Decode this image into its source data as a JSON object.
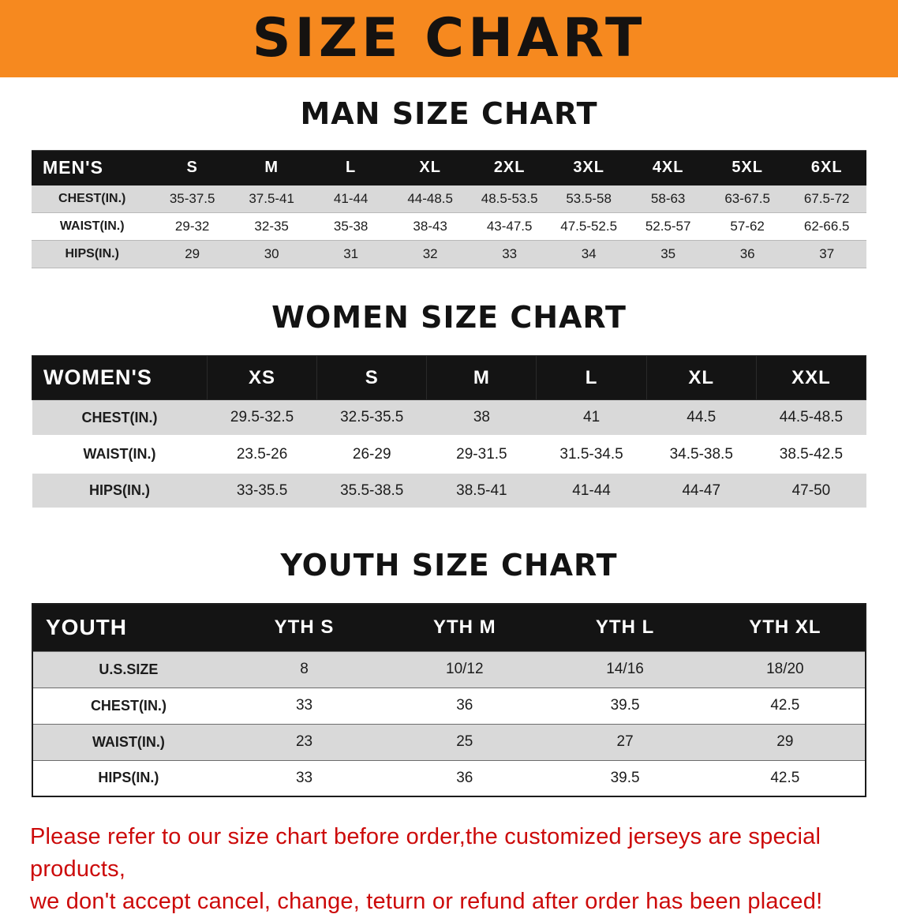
{
  "banner": {
    "title": "SIZE CHART"
  },
  "sections": {
    "men": {
      "heading": "MAN SIZE CHART"
    },
    "women": {
      "heading": "WOMEN SIZE CHART"
    },
    "youth": {
      "heading": "YOUTH SIZE CHART"
    }
  },
  "tables": {
    "men": {
      "header": [
        "MEN'S",
        "S",
        "M",
        "L",
        "XL",
        "2XL",
        "3XL",
        "4XL",
        "5XL",
        "6XL"
      ],
      "rows": [
        [
          "CHEST(IN.)",
          "35-37.5",
          "37.5-41",
          "41-44",
          "44-48.5",
          "48.5-53.5",
          "53.5-58",
          "58-63",
          "63-67.5",
          "67.5-72"
        ],
        [
          "WAIST(IN.)",
          "29-32",
          "32-35",
          "35-38",
          "38-43",
          "43-47.5",
          "47.5-52.5",
          "52.5-57",
          "57-62",
          "62-66.5"
        ],
        [
          "HIPS(IN.)",
          "29",
          "30",
          "31",
          "32",
          "33",
          "34",
          "35",
          "36",
          "37"
        ]
      ]
    },
    "women": {
      "header": [
        "WOMEN'S",
        "XS",
        "S",
        "M",
        "L",
        "XL",
        "XXL"
      ],
      "rows": [
        [
          "CHEST(IN.)",
          "29.5-32.5",
          "32.5-35.5",
          "38",
          "41",
          "44.5",
          "44.5-48.5"
        ],
        [
          "WAIST(IN.)",
          "23.5-26",
          "26-29",
          "29-31.5",
          "31.5-34.5",
          "34.5-38.5",
          "38.5-42.5"
        ],
        [
          "HIPS(IN.)",
          "33-35.5",
          "35.5-38.5",
          "38.5-41",
          "41-44",
          "44-47",
          "47-50"
        ]
      ]
    },
    "youth": {
      "header": [
        "YOUTH",
        "YTH S",
        "YTH M",
        "YTH L",
        "YTH XL"
      ],
      "rows": [
        [
          "U.S.SIZE",
          "8",
          "10/12",
          "14/16",
          "18/20"
        ],
        [
          "CHEST(IN.)",
          "33",
          "36",
          "39.5",
          "42.5"
        ],
        [
          "WAIST(IN.)",
          "23",
          "25",
          "27",
          "29"
        ],
        [
          "HIPS(IN.)",
          "33",
          "36",
          "39.5",
          "42.5"
        ]
      ]
    }
  },
  "disclaimer": {
    "line1": "Please refer to our size chart before order,the customized jerseys are special products,",
    "line2": "we don't accept cancel, change, teturn or refund after order has been placed!"
  },
  "colors": {
    "banner_orange": "#f6891f",
    "header_black": "#141414",
    "row_gray": "#d9d9d9",
    "disclaimer_red": "#cc0a0a"
  }
}
